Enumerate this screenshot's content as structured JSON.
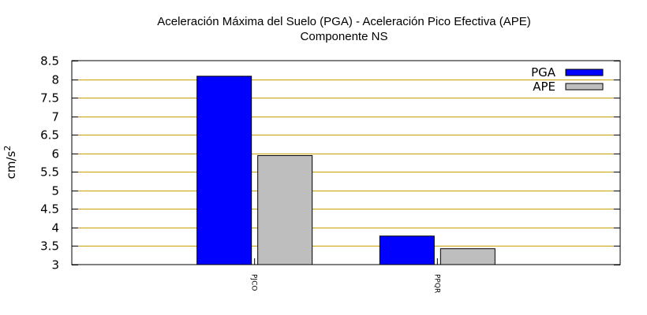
{
  "chart_data": {
    "type": "bar",
    "title": "Aceleración Máxima del Suelo (PGA) -  Aceleración Pico Efectiva (APE)",
    "subtitle": "Componente NS",
    "xlabel": "",
    "ylabel": "cm/s",
    "ylabel_superscript": "2",
    "ylim": [
      3,
      8.5
    ],
    "yticks": [
      3,
      3.5,
      4,
      4.5,
      5,
      5.5,
      6,
      6.5,
      7,
      7.5,
      8,
      8.5
    ],
    "ytick_labels": [
      "3",
      "3.5",
      "4",
      "4.5",
      "5",
      "5.5",
      "6",
      "6.5",
      "7",
      "7.5",
      "8",
      "8.5"
    ],
    "categories": [
      "PJCO",
      "PPQR"
    ],
    "series": [
      {
        "name": "PGA",
        "values": [
          8.08,
          3.77
        ],
        "color": "#0000ff"
      },
      {
        "name": "APE",
        "values": [
          5.94,
          3.43
        ],
        "color": "#bebebe"
      }
    ],
    "grid": true,
    "grid_color": "#c8a000",
    "legend": "top-right"
  }
}
